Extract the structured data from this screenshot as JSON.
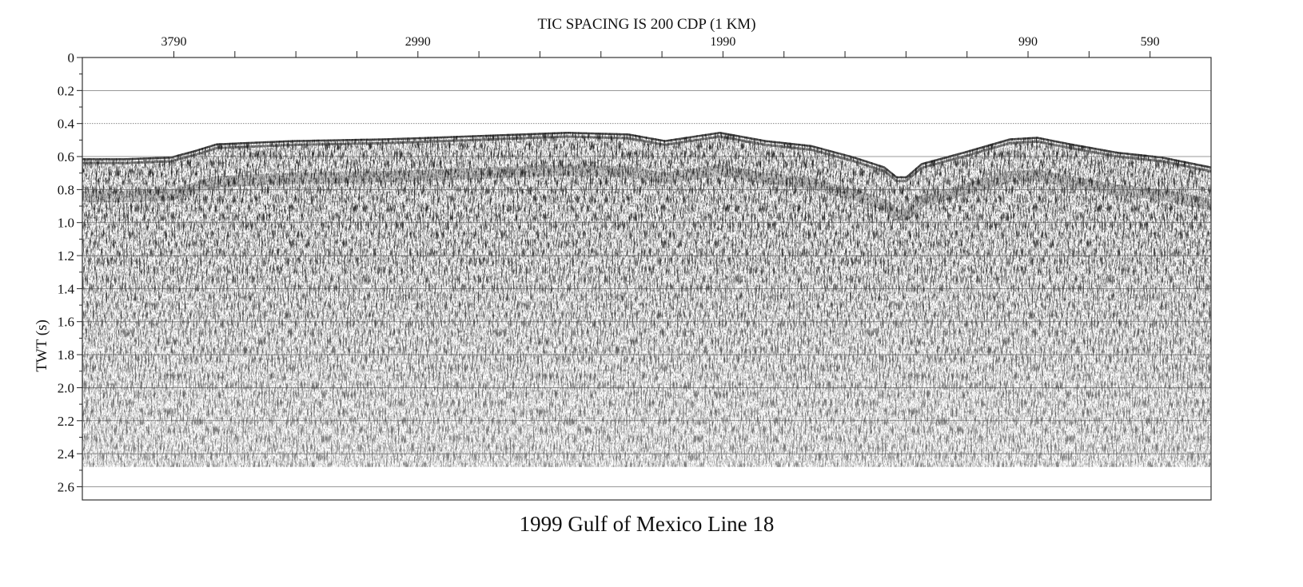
{
  "chart_data": {
    "type": "seismic-section",
    "top_label": "TIC SPACING IS 200 CDP (1 KM)",
    "caption": "1999 Gulf of Mexico Line 18",
    "ylabel": "TWT (s)",
    "y_ticks": [
      "0",
      "0.2",
      "0.4",
      "0.6",
      "0.8",
      "1.0",
      "1.2",
      "1.4",
      "1.6",
      "1.8",
      "2.0",
      "2.2",
      "2.4",
      "2.6"
    ],
    "y_tick_values": [
      0,
      0.2,
      0.4,
      0.6,
      0.8,
      1.0,
      1.2,
      1.4,
      1.6,
      1.8,
      2.0,
      2.2,
      2.4,
      2.6
    ],
    "ylim": [
      0,
      2.68
    ],
    "x_axis": "CDP",
    "xlim": [
      4090,
      390
    ],
    "x_ticks": [
      "3790",
      "2990",
      "1990",
      "990",
      "590"
    ],
    "x_tick_values": [
      3790,
      2990,
      1990,
      990,
      590
    ],
    "x_minor_tick_values": [
      3590,
      3390,
      3190,
      2790,
      2590,
      2390,
      2190,
      1790,
      1590,
      1390,
      1190,
      790
    ],
    "grid_lines_y": [
      0.2,
      0.4,
      0.6,
      0.8,
      1.0,
      1.2,
      1.4,
      1.6,
      1.8,
      2.0,
      2.2,
      2.4,
      2.6
    ],
    "seafloor_profile": {
      "x": [
        4090,
        3950,
        3800,
        3720,
        3650,
        3400,
        3100,
        2800,
        2500,
        2300,
        2180,
        2000,
        1850,
        1700,
        1560,
        1460,
        1420,
        1390,
        1340,
        1200,
        1050,
        960,
        850,
        700,
        550,
        390
      ],
      "y": [
        0.61,
        0.61,
        0.6,
        0.56,
        0.52,
        0.5,
        0.49,
        0.47,
        0.45,
        0.46,
        0.5,
        0.45,
        0.5,
        0.53,
        0.6,
        0.66,
        0.72,
        0.72,
        0.64,
        0.57,
        0.49,
        0.48,
        0.52,
        0.57,
        0.6,
        0.66
      ]
    },
    "data_bottom_twt": 2.48
  }
}
